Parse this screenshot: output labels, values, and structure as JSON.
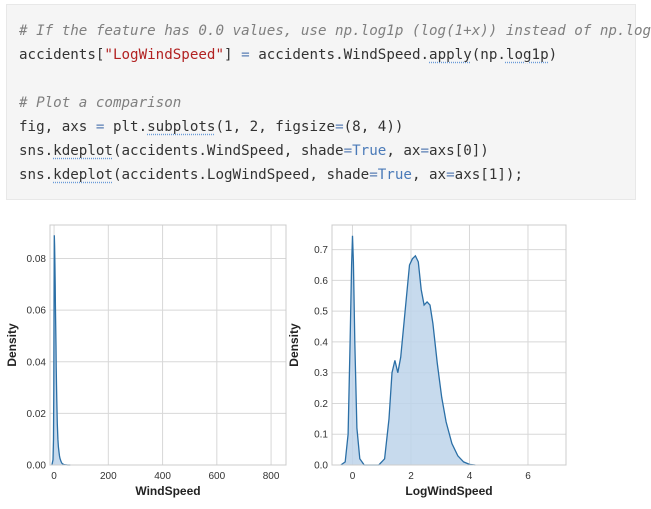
{
  "code_cell": {
    "lines": [
      [
        {
          "t": "# If the feature has 0.0 values, use np.log1p (log(1+x)) instead of np.log",
          "c": "comment"
        }
      ],
      [
        {
          "t": "accidents[",
          "c": ""
        },
        {
          "t": "\"LogWindSpeed\"",
          "c": "string"
        },
        {
          "t": "] ",
          "c": ""
        },
        {
          "t": "=",
          "c": "op"
        },
        {
          "t": " accidents.WindSpeed.",
          "c": ""
        },
        {
          "t": "apply",
          "c": "call"
        },
        {
          "t": "(np.",
          "c": ""
        },
        {
          "t": "log1p",
          "c": "call"
        },
        {
          "t": ")",
          "c": ""
        }
      ],
      [
        {
          "t": "",
          "c": ""
        }
      ],
      [
        {
          "t": "# Plot a comparison",
          "c": "comment"
        }
      ],
      [
        {
          "t": "fig, axs ",
          "c": ""
        },
        {
          "t": "=",
          "c": "op"
        },
        {
          "t": " plt.",
          "c": ""
        },
        {
          "t": "subplots",
          "c": "call"
        },
        {
          "t": "(1, 2, figsize",
          "c": ""
        },
        {
          "t": "=",
          "c": "op"
        },
        {
          "t": "(8, 4))",
          "c": ""
        }
      ],
      [
        {
          "t": "sns.",
          "c": ""
        },
        {
          "t": "kdeplot",
          "c": "call"
        },
        {
          "t": "(accidents.WindSpeed, shade",
          "c": ""
        },
        {
          "t": "=",
          "c": "op"
        },
        {
          "t": "True",
          "c": "kw"
        },
        {
          "t": ", ax",
          "c": ""
        },
        {
          "t": "=",
          "c": "op"
        },
        {
          "t": "axs[0])",
          "c": ""
        }
      ],
      [
        {
          "t": "sns.",
          "c": ""
        },
        {
          "t": "kdeplot",
          "c": "call"
        },
        {
          "t": "(accidents.LogWindSpeed, shade",
          "c": ""
        },
        {
          "t": "=",
          "c": "op"
        },
        {
          "t": "True",
          "c": "kw"
        },
        {
          "t": ", ax",
          "c": ""
        },
        {
          "t": "=",
          "c": "op"
        },
        {
          "t": "axs[1]);",
          "c": ""
        }
      ]
    ]
  },
  "colors": {
    "line": "#2b6fa6",
    "fill": "#bdd4ea",
    "grid": "#d8d8d8",
    "axis": "#cccccc",
    "tick_text": "#333333"
  },
  "chart_data": [
    {
      "type": "area",
      "xlabel": "WindSpeed",
      "ylabel": "Density",
      "xlim": [
        -15,
        855
      ],
      "ylim": [
        0,
        0.093
      ],
      "xticks": [
        0,
        200,
        400,
        600,
        800
      ],
      "yticks": [
        0.0,
        0.02,
        0.04,
        0.06,
        0.08
      ],
      "ytick_labels": [
        "0.00",
        "0.02",
        "0.04",
        "0.06",
        "0.08"
      ],
      "grid": true,
      "x": [
        -8,
        -4,
        -2,
        -1,
        0,
        1,
        2,
        3,
        4,
        5,
        6,
        7,
        8,
        9,
        10,
        12,
        14,
        16,
        18,
        20,
        22,
        25,
        28,
        32,
        36,
        40,
        50,
        60
      ],
      "y": [
        0.0,
        0.002,
        0.01,
        0.03,
        0.07,
        0.089,
        0.085,
        0.078,
        0.07,
        0.062,
        0.054,
        0.046,
        0.038,
        0.031,
        0.025,
        0.016,
        0.01,
        0.007,
        0.005,
        0.0035,
        0.0025,
        0.0015,
        0.0008,
        0.0004,
        0.0002,
        0.0001,
        0.0,
        0.0
      ]
    },
    {
      "type": "area",
      "xlabel": "LogWindSpeed",
      "ylabel": "Density",
      "xlim": [
        -0.7,
        7.3
      ],
      "ylim": [
        0,
        0.78
      ],
      "xticks": [
        0,
        2,
        4,
        6
      ],
      "yticks": [
        0.0,
        0.1,
        0.2,
        0.3,
        0.4,
        0.5,
        0.6,
        0.7
      ],
      "ytick_labels": [
        "0.0",
        "0.1",
        "0.2",
        "0.3",
        "0.4",
        "0.5",
        "0.6",
        "0.7"
      ],
      "grid": true,
      "x": [
        -0.4,
        -0.25,
        -0.15,
        -0.08,
        -0.03,
        0.0,
        0.03,
        0.08,
        0.15,
        0.25,
        0.4,
        0.6,
        0.9,
        1.1,
        1.25,
        1.35,
        1.45,
        1.55,
        1.65,
        1.8,
        1.95,
        2.05,
        2.15,
        2.25,
        2.35,
        2.45,
        2.55,
        2.65,
        2.75,
        2.9,
        3.05,
        3.2,
        3.4,
        3.6,
        3.8,
        4.0,
        4.2
      ],
      "y": [
        0.0,
        0.01,
        0.1,
        0.4,
        0.65,
        0.745,
        0.66,
        0.4,
        0.12,
        0.02,
        0.0,
        0.0,
        0.0,
        0.02,
        0.15,
        0.3,
        0.34,
        0.3,
        0.35,
        0.5,
        0.65,
        0.67,
        0.68,
        0.66,
        0.57,
        0.52,
        0.53,
        0.52,
        0.46,
        0.33,
        0.22,
        0.14,
        0.07,
        0.03,
        0.01,
        0.002,
        0.0
      ]
    }
  ]
}
